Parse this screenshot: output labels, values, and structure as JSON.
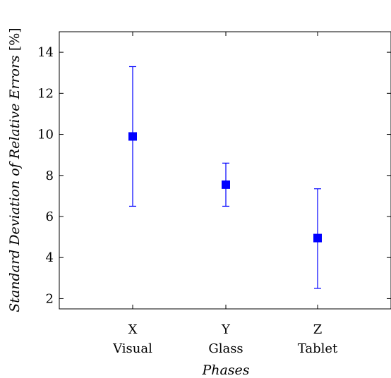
{
  "chart_data": {
    "type": "scatter",
    "error_bars": true,
    "title": "",
    "xlabel": "Phases",
    "ylabel": "Standard Deviation of Relative Errors",
    "ylabel_unit": "[%]",
    "categories": [
      "X",
      "Y",
      "Z"
    ],
    "category_sublabels": [
      "Visual",
      "Glass",
      "Tablet"
    ],
    "ylim": [
      1.5,
      15
    ],
    "yticks": [
      2,
      4,
      6,
      8,
      10,
      12,
      14
    ],
    "grid": false,
    "series": [
      {
        "values": [
          9.9,
          7.55,
          4.95
        ],
        "error_low": [
          6.5,
          6.5,
          2.5
        ],
        "error_high": [
          13.3,
          8.6,
          7.35
        ],
        "color": "#0000ff",
        "marker": "square"
      }
    ]
  }
}
